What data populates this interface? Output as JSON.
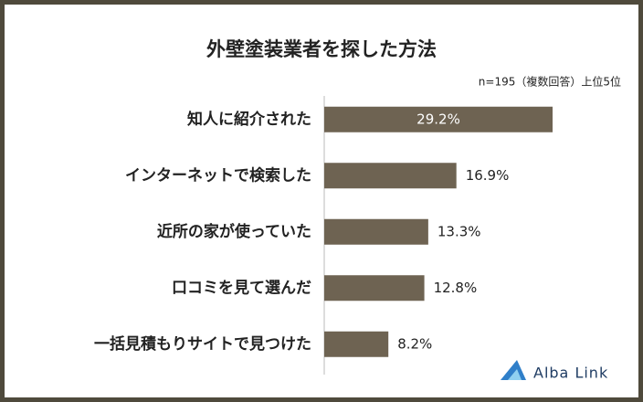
{
  "chart_data": {
    "type": "bar",
    "orientation": "horizontal",
    "title": "外壁塗装業者を探した方法",
    "subtitle": "n=195（複数回答）上位5位",
    "categories": [
      "知人に紹介された",
      "インターネットで検索した",
      "近所の家が使っていた",
      "口コミを見て選んだ",
      "一括見積もりサイトで見つけた"
    ],
    "values": [
      29.2,
      16.9,
      13.3,
      12.8,
      8.2
    ],
    "value_labels": [
      "29.2%",
      "16.9%",
      "13.3%",
      "12.8%",
      "8.2%"
    ],
    "color": "#6e6352"
  },
  "logo": "Alba Link"
}
